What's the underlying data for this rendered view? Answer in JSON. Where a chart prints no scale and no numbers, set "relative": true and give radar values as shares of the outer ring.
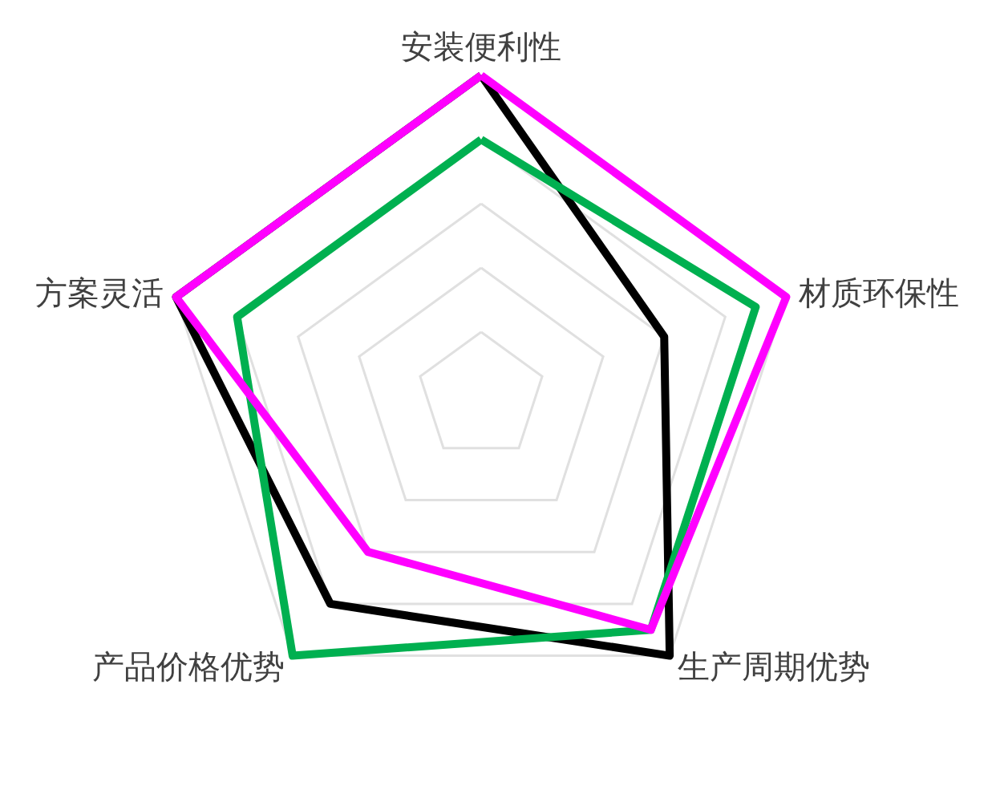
{
  "chart_data": {
    "type": "radar",
    "relative": true,
    "categories": [
      "安装便利性",
      "材质环保性",
      "生产周期优势",
      "产品价格优势",
      "方案灵活"
    ],
    "series": [
      {
        "color": "#000000",
        "values": [
          1.0,
          0.6,
          1.0,
          0.8,
          1.0
        ]
      },
      {
        "color": "#00b050",
        "values": [
          0.8,
          0.9,
          0.9,
          1.0,
          0.8
        ]
      },
      {
        "color": "#ff00ff",
        "values": [
          1.0,
          1.0,
          0.9,
          0.6,
          1.0
        ]
      }
    ],
    "grid": true,
    "marker": "none",
    "line_style": "solid"
  }
}
